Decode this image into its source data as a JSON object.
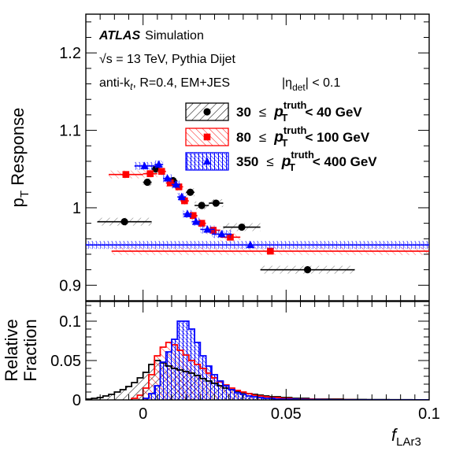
{
  "chart_data": [
    {
      "type": "scatter",
      "panel": "response",
      "ylabel_main": "p",
      "ylabel_sub": "T",
      "ylabel_rest": "Response",
      "xlim": [
        -0.02,
        0.1
      ],
      "ylim": [
        0.88,
        1.25
      ],
      "yticks": [
        0.9,
        1,
        1.1,
        1.2
      ],
      "ytick_labels": [
        "0.9",
        "1",
        "1.1",
        "1.2"
      ],
      "annotations": {
        "atlas": "ATLAS",
        "simulation": "Simulation",
        "sqrt_s": "√s = 13 TeV, Pythia Dijet",
        "jet_alg_prefix": "anti-k",
        "jet_alg_sub": "t",
        "jet_alg_rest": ", R=0.4, EM+JES",
        "eta_pre": "|η",
        "eta_sub": "det",
        "eta_post": "| < 0.1"
      },
      "series": [
        {
          "name_low": "30",
          "name_high": "< 40 GeV",
          "color": "#000000",
          "marker": "circle",
          "x": [
            -0.0065,
            0.0015,
            0.0045,
            0.0105,
            0.0165,
            0.0205,
            0.0255,
            0.0345,
            0.0575
          ],
          "xerr": [
            0.0095,
            0.0015,
            0.0015,
            0.0015,
            0.0015,
            0.0025,
            0.0025,
            0.0065,
            0.0165
          ],
          "y": [
            0.982,
            1.033,
            1.05,
            1.035,
            1.02,
            1.003,
            1.006,
            0.975,
            0.92
          ]
        },
        {
          "name_low": "80",
          "name_high": "< 100 GeV",
          "color": "#ff0000",
          "marker": "square",
          "x": [
            -0.006,
            0.0025,
            0.0065,
            0.0095,
            0.0125,
            0.0145,
            0.0175,
            0.0205,
            0.0245,
            0.0305,
            0.0445
          ],
          "xerr": [
            0.006,
            0.0025,
            0.0015,
            0.0015,
            0.0015,
            0.0015,
            0.0015,
            0.0015,
            0.0025,
            0.0035,
            0.0555
          ],
          "y": [
            1.043,
            1.044,
            1.047,
            1.032,
            1.027,
            1.009,
            0.99,
            0.98,
            0.971,
            0.962,
            0.944
          ]
        },
        {
          "name_low": "350",
          "name_high": "< 400 GeV",
          "color": "#0000ff",
          "marker": "triangle",
          "x": [
            0.0005,
            0.0055,
            0.0085,
            0.0115,
            0.0135,
            0.0155,
            0.0185,
            0.0225,
            0.0275,
            0.0375
          ],
          "xerr": [
            0.0035,
            0.0015,
            0.0015,
            0.0015,
            0.0015,
            0.0015,
            0.0015,
            0.0025,
            0.0035,
            0.0625
          ],
          "y": [
            1.054,
            1.056,
            1.038,
            1.03,
            1.014,
            0.992,
            0.982,
            0.972,
            0.966,
            0.952
          ]
        }
      ]
    },
    {
      "type": "area",
      "panel": "fraction",
      "ylabel_line1": "Relative",
      "ylabel_line2": "Fraction",
      "xlabel_main": "f",
      "xlabel_sub": "LAr3",
      "xlim": [
        -0.02,
        0.1
      ],
      "ylim": [
        0,
        0.125
      ],
      "yticks": [
        0,
        0.05,
        0.1
      ],
      "ytick_labels": [
        "0",
        "0.05",
        "0.1"
      ],
      "xticks": [
        0,
        0.05,
        0.1
      ],
      "xtick_labels": [
        "0",
        "0.05",
        "0.1"
      ],
      "bin_width": 0.002,
      "series": [
        {
          "color": "#000000",
          "x_start": -0.02,
          "values": [
            0.001,
            0.002,
            0.003,
            0.005,
            0.007,
            0.01,
            0.013,
            0.017,
            0.022,
            0.028,
            0.035,
            0.045,
            0.05,
            0.047,
            0.043,
            0.04,
            0.038,
            0.036,
            0.034,
            0.031,
            0.027,
            0.024,
            0.021,
            0.018,
            0.015,
            0.013,
            0.011,
            0.009,
            0.008,
            0.007,
            0.006,
            0.005,
            0.004,
            0.004,
            0.003,
            0.003,
            0.002,
            0.002,
            0.002,
            0.001,
            0.001,
            0.001,
            0.001,
            0.001,
            0.001,
            0.0005,
            0.0005,
            0.0005,
            0.0005,
            0.0003,
            0.0003,
            0.0003,
            0.0003,
            0.0002,
            0.0002,
            0.0002,
            0.0002,
            0.0001,
            0.0001,
            0.0001
          ]
        },
        {
          "color": "#ff0000",
          "x_start": -0.004,
          "values": [
            0.002,
            0.006,
            0.015,
            0.032,
            0.056,
            0.067,
            0.073,
            0.07,
            0.063,
            0.057,
            0.05,
            0.045,
            0.04,
            0.034,
            0.028,
            0.023,
            0.019,
            0.015,
            0.012,
            0.01,
            0.008,
            0.006,
            0.005,
            0.004,
            0.003,
            0.003,
            0.002,
            0.002,
            0.001,
            0.001,
            0.001,
            0.0008,
            0.0006,
            0.0005,
            0.0004,
            0.0003,
            0.0003,
            0.0002,
            0.0002,
            0.0001,
            0.0001,
            0.0001,
            0.0001,
            0.0001,
            0.0001,
            0.0001,
            0.0001,
            0.0001,
            0.0001,
            0.0001,
            0.0001,
            0.0001
          ]
        },
        {
          "color": "#0000ff",
          "x_start": 0.0,
          "values": [
            0.002,
            0.008,
            0.018,
            0.048,
            0.061,
            0.077,
            0.1,
            0.1,
            0.09,
            0.073,
            0.056,
            0.043,
            0.032,
            0.024,
            0.018,
            0.013,
            0.009,
            0.007,
            0.005,
            0.004,
            0.003,
            0.002,
            0.002,
            0.001,
            0.001,
            0.001,
            0.0008,
            0.0006,
            0.0005,
            0.0004,
            0.0003,
            0.0002,
            0.0002,
            0.0001,
            0.0001,
            0.0001,
            0.0001,
            0.0001,
            0.0001,
            0.0001,
            0.0001,
            0.0001,
            0.0001,
            0.0001,
            0.0001,
            0.0001,
            0.0001,
            0.0001,
            0.0001,
            0.0001
          ]
        }
      ]
    }
  ]
}
